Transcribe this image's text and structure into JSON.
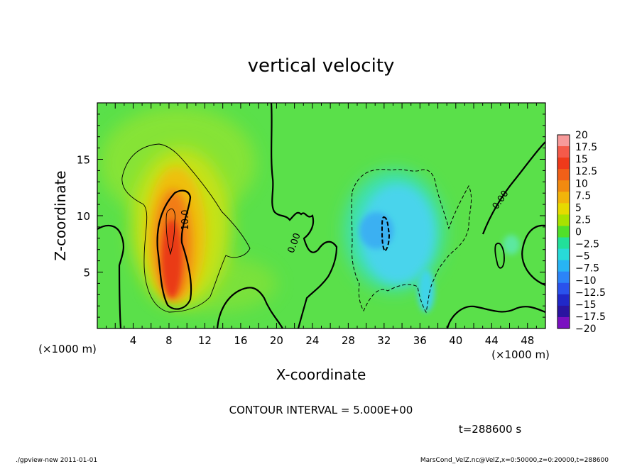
{
  "chart_data": {
    "type": "heatmap",
    "title": "vertical velocity",
    "xlabel": "X-coordinate",
    "ylabel": "Z-coordinate",
    "x_unit": "(×1000 m)",
    "y_unit": "(×1000 m)",
    "xlim": [
      0,
      50
    ],
    "ylim": [
      0,
      20
    ],
    "x_ticks": [
      4,
      8,
      12,
      16,
      20,
      24,
      28,
      32,
      36,
      40,
      44,
      48
    ],
    "y_ticks": [
      5,
      10,
      15
    ],
    "colorbar": {
      "labels": [
        "20",
        "17.5",
        "15",
        "12.5",
        "10",
        "7.5",
        "5",
        "2.5",
        "0",
        "−2.5",
        "−5",
        "−7.5",
        "−10",
        "−12.5",
        "−15",
        "−17.5",
        "−20"
      ],
      "colors": [
        "#f79a9a",
        "#f45a4a",
        "#ee3a1a",
        "#f06018",
        "#f28a10",
        "#f2b40a",
        "#e6da00",
        "#a8e200",
        "#50e02a",
        "#22e09a",
        "#28dad8",
        "#28b4f4",
        "#2c84f8",
        "#2a52ec",
        "#2028c8",
        "#2a14a0",
        "#7a10c0"
      ]
    },
    "contour_labels": [
      "10.0",
      "0.00",
      "0.00"
    ],
    "contour_interval": "CONTOUR INTERVAL = 5.000E+00",
    "time_label": "t=288600 s",
    "features": [
      {
        "name": "updraft-core",
        "x": 8.8,
        "z": 7.5,
        "value": 15
      },
      {
        "name": "downdraft-core",
        "x": 31.5,
        "z": 8.5,
        "value": -5.5
      }
    ],
    "background_color": "#5ae04a"
  },
  "footer": {
    "left": "./gpview-new  2011-01-01",
    "right": "MarsCond_VelZ.nc@VelZ,x=0:50000,z=0:20000,t=288600"
  }
}
